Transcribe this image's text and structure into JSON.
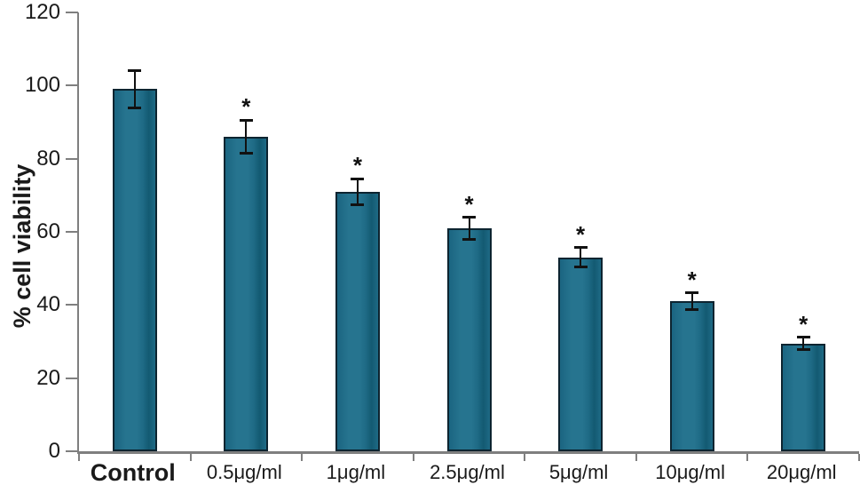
{
  "chart_data": {
    "type": "bar",
    "title": "",
    "xlabel": "",
    "ylabel": "% cell viability",
    "ylim": [
      0,
      120
    ],
    "yticks": [
      0,
      20,
      40,
      60,
      80,
      100,
      120
    ],
    "grid": false,
    "legend": null,
    "categories": [
      "Control",
      "0.5μg/ml",
      "1μg/ml",
      "2.5μg/ml",
      "5μg/ml",
      "10μg/ml",
      "20μg/ml"
    ],
    "series": [
      {
        "name": "% cell viability",
        "values": [
          99,
          86,
          71,
          61,
          53,
          41,
          29.5
        ],
        "errors": [
          5,
          4.5,
          3.5,
          3,
          2.7,
          2.3,
          1.7
        ],
        "significance": [
          "",
          "*",
          "*",
          "*",
          "*",
          "*",
          "*"
        ]
      }
    ],
    "colors": {
      "bar_fill": "#1e6b88",
      "bar_border": "#0d2430",
      "axis": "#7f7f7f",
      "error_bar": "#111111",
      "text": "#1a1a1a",
      "background": "#ffffff"
    }
  }
}
